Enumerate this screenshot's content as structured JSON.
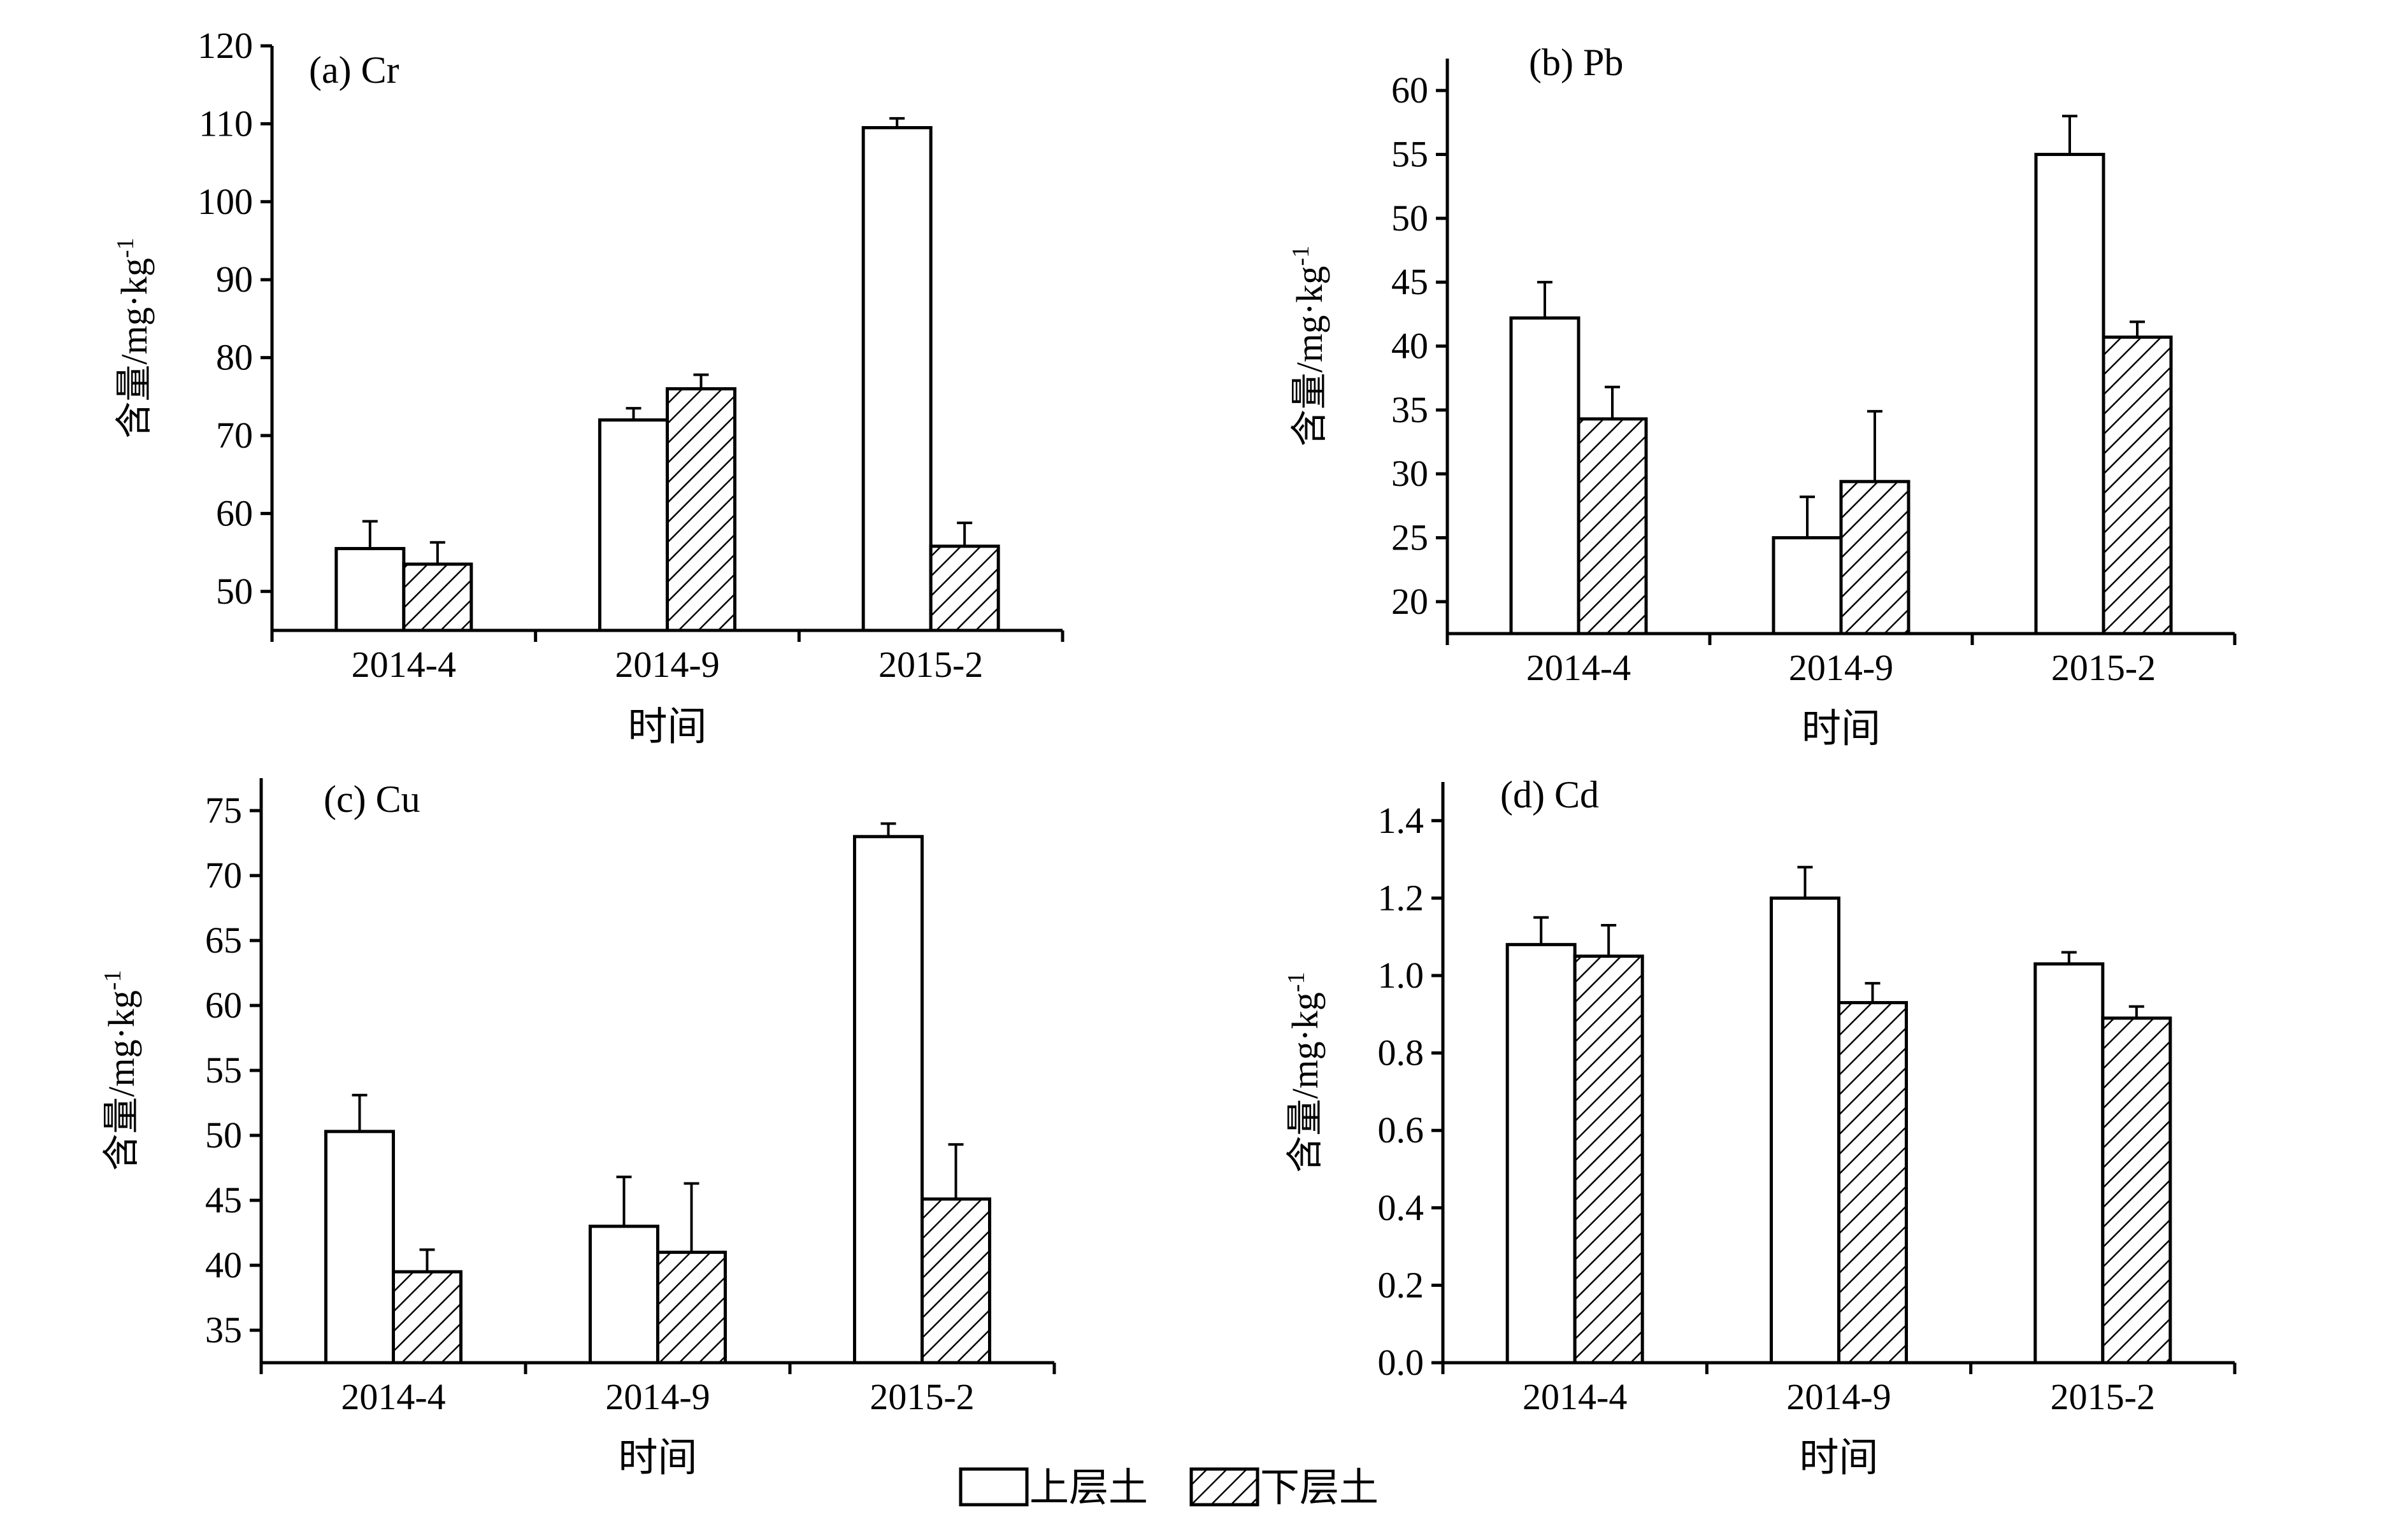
{
  "legend": {
    "upper_label": "上层土",
    "lower_label": "下层土"
  },
  "chart_data": [
    {
      "type": "bar",
      "title": "(a) Cr",
      "categories": [
        "2014-4",
        "2014-9",
        "2015-2"
      ],
      "xlabel": "时间",
      "ylabel": "含量/mg·kg",
      "ylabel_sup": "-1",
      "ylim": [
        45,
        120
      ],
      "yticks": [
        50,
        60,
        70,
        80,
        90,
        100,
        110,
        120
      ],
      "ytick_labels": [
        "50",
        "60",
        "70",
        "80",
        "90",
        "100",
        "110",
        "120"
      ],
      "series": [
        {
          "name": "上层土",
          "values": [
            55.5,
            72.0,
            109.5
          ],
          "errors": [
            3.5,
            1.5,
            1.2
          ]
        },
        {
          "name": "下层土",
          "values": [
            53.5,
            76.0,
            55.8
          ],
          "errors": [
            2.8,
            1.8,
            3.0
          ]
        }
      ]
    },
    {
      "type": "bar",
      "title": "(b) Pb",
      "categories": [
        "2014-4",
        "2014-9",
        "2015-2"
      ],
      "xlabel": "时间",
      "ylabel": "含量/mg·kg",
      "ylabel_sup": "-1",
      "ylim": [
        17.5,
        62.5
      ],
      "yticks": [
        20,
        25,
        30,
        35,
        40,
        45,
        50,
        55,
        60
      ],
      "ytick_labels": [
        "20",
        "25",
        "30",
        "35",
        "40",
        "45",
        "50",
        "55",
        "60"
      ],
      "series": [
        {
          "name": "上层土",
          "values": [
            42.2,
            25.0,
            55.0
          ],
          "errors": [
            2.8,
            3.2,
            3.0
          ]
        },
        {
          "name": "下层土",
          "values": [
            34.3,
            29.4,
            40.7
          ],
          "errors": [
            2.5,
            5.5,
            1.2
          ]
        }
      ]
    },
    {
      "type": "bar",
      "title": "(c) Cu",
      "categories": [
        "2014-4",
        "2014-9",
        "2015-2"
      ],
      "xlabel": "时间",
      "ylabel": "含量/mg·kg",
      "ylabel_sup": "-1",
      "ylim": [
        32.5,
        77.5
      ],
      "yticks": [
        35,
        40,
        45,
        50,
        55,
        60,
        65,
        70,
        75
      ],
      "ytick_labels": [
        "35",
        "40",
        "45",
        "50",
        "55",
        "60",
        "65",
        "70",
        "75"
      ],
      "series": [
        {
          "name": "上层土",
          "values": [
            50.3,
            43.0,
            73.0
          ],
          "errors": [
            2.8,
            3.8,
            1.0
          ]
        },
        {
          "name": "下层土",
          "values": [
            39.5,
            41.0,
            45.1
          ],
          "errors": [
            1.7,
            5.3,
            4.2
          ]
        }
      ]
    },
    {
      "type": "bar",
      "title": "(d) Cd",
      "categories": [
        "2014-4",
        "2014-9",
        "2015-2"
      ],
      "xlabel": "时间",
      "ylabel": "含量/mg·kg",
      "ylabel_sup": "-1",
      "ylim": [
        0.0,
        1.5
      ],
      "yticks": [
        0.0,
        0.2,
        0.4,
        0.6,
        0.8,
        1.0,
        1.2,
        1.4
      ],
      "ytick_labels": [
        "0.0",
        "0.2",
        "0.4",
        "0.6",
        "0.8",
        "1.0",
        "1.2",
        "1.4"
      ],
      "series": [
        {
          "name": "上层土",
          "values": [
            1.08,
            1.2,
            1.03
          ],
          "errors": [
            0.07,
            0.08,
            0.03
          ]
        },
        {
          "name": "下层土",
          "values": [
            1.05,
            0.93,
            0.89
          ],
          "errors": [
            0.08,
            0.05,
            0.03
          ]
        }
      ]
    }
  ]
}
